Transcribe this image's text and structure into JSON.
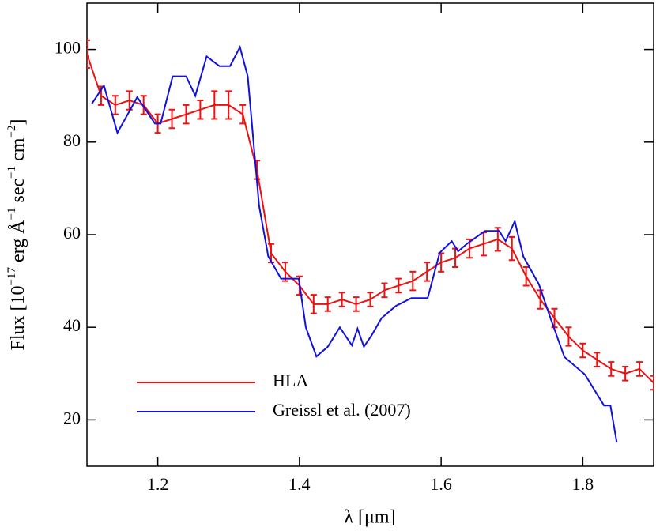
{
  "chart_data": {
    "type": "line",
    "xlabel": "λ [μm]",
    "ylabel": "Flux [10^{−17} erg Å^{−1} sec^{−1} cm^{−2}]",
    "xlim": [
      1.1,
      1.9
    ],
    "ylim": [
      10,
      110
    ],
    "xticks": [
      1.2,
      1.4,
      1.6,
      1.8
    ],
    "yticks": [
      20,
      40,
      60,
      80,
      100
    ],
    "legend": "lower-left",
    "series": [
      {
        "name": "HLA",
        "color": "#ee1111",
        "x": [
          1.1,
          1.12,
          1.14,
          1.16,
          1.18,
          1.2,
          1.22,
          1.24,
          1.26,
          1.28,
          1.3,
          1.32,
          1.34,
          1.36,
          1.38,
          1.4,
          1.42,
          1.44,
          1.46,
          1.48,
          1.5,
          1.52,
          1.54,
          1.56,
          1.58,
          1.6,
          1.62,
          1.64,
          1.66,
          1.68,
          1.7,
          1.72,
          1.74,
          1.76,
          1.78,
          1.8,
          1.82,
          1.84,
          1.86,
          1.88,
          1.9
        ],
        "values": [
          99,
          90,
          88,
          89,
          88,
          84,
          85,
          86,
          87,
          88,
          88,
          86,
          74,
          56,
          52,
          49,
          45,
          45,
          46,
          45,
          46,
          48,
          49,
          50,
          52,
          54,
          55,
          57,
          58,
          59,
          57,
          51,
          46,
          42,
          38,
          35,
          33,
          31,
          30,
          31,
          28
        ],
        "errors": [
          3,
          2,
          2,
          2,
          2,
          2,
          2,
          2,
          2,
          3,
          3,
          2,
          2,
          2,
          2,
          2,
          2,
          1.5,
          1.5,
          1.5,
          1.5,
          1.5,
          1.5,
          2,
          2,
          2,
          2,
          2,
          2.5,
          2.5,
          2.5,
          2,
          2,
          2,
          2,
          1.5,
          1.5,
          1.5,
          1.5,
          1.5,
          1.5
        ]
      },
      {
        "name": "Greissl et al. (2007)",
        "color": "#1111dd",
        "x": [
          1.107,
          1.124,
          1.143,
          1.171,
          1.196,
          1.204,
          1.221,
          1.24,
          1.253,
          1.269,
          1.287,
          1.302,
          1.316,
          1.327,
          1.343,
          1.356,
          1.374,
          1.399,
          1.409,
          1.424,
          1.44,
          1.457,
          1.474,
          1.482,
          1.491,
          1.502,
          1.516,
          1.536,
          1.558,
          1.581,
          1.598,
          1.615,
          1.624,
          1.637,
          1.662,
          1.682,
          1.691,
          1.704,
          1.716,
          1.738,
          1.755,
          1.774,
          1.803,
          1.83,
          1.839,
          1.848
        ],
        "values": [
          88.3,
          92.2,
          82,
          89.7,
          84,
          84,
          94.2,
          94.2,
          90,
          98.5,
          96.4,
          96.4,
          100.5,
          94.2,
          66.3,
          55.3,
          50.5,
          50.5,
          40,
          33.7,
          35.8,
          40,
          36.1,
          39.7,
          35.8,
          38.3,
          42,
          44.6,
          46.3,
          46.3,
          56.1,
          58.6,
          56.4,
          58.1,
          60.8,
          60.8,
          58.6,
          62.9,
          55.3,
          49.3,
          41.7,
          33.6,
          29.8,
          23.1,
          23.1,
          15.1
        ]
      }
    ]
  }
}
